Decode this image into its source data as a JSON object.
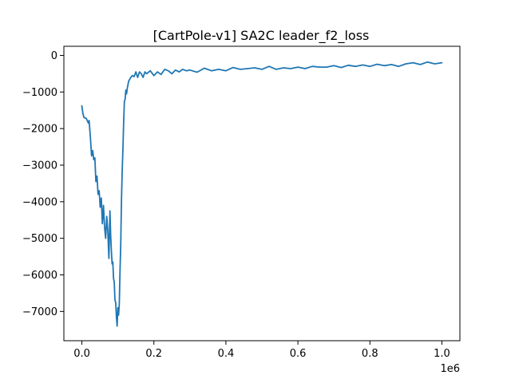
{
  "chart_data": {
    "type": "line",
    "title": "[CartPole-v1] SA2C leader_f2_loss",
    "xlabel": "",
    "ylabel": "",
    "x_offset_label": "1e6",
    "xlim": [
      -50000,
      1050000
    ],
    "ylim": [
      -7800,
      250
    ],
    "x_ticks": [
      0,
      200000,
      400000,
      600000,
      800000,
      1000000
    ],
    "x_tick_labels": [
      "0.0",
      "0.2",
      "0.4",
      "0.6",
      "0.8",
      "1.0"
    ],
    "y_ticks": [
      0,
      -1000,
      -2000,
      -3000,
      -4000,
      -5000,
      -6000,
      -7000
    ],
    "y_tick_labels": [
      "0",
      "−1000",
      "−2000",
      "−3000",
      "−4000",
      "−5000",
      "−6000",
      "−7000"
    ],
    "grid": false,
    "series": [
      {
        "color": "#1f77b4",
        "x": [
          0,
          3000,
          6000,
          12000,
          18000,
          20000,
          24000,
          27000,
          30000,
          33000,
          36000,
          39000,
          42000,
          45000,
          48000,
          51000,
          54000,
          57000,
          60000,
          63000,
          66000,
          69000,
          72000,
          75000,
          78000,
          80000,
          82000,
          84000,
          86000,
          88000,
          90000,
          92000,
          94000,
          96000,
          98000,
          100000,
          102000,
          104000,
          106000,
          108000,
          110000,
          112000,
          114000,
          116000,
          118000,
          120000,
          122000,
          124000,
          126000,
          128000,
          130000,
          133000,
          136000,
          140000,
          145000,
          150000,
          155000,
          160000,
          165000,
          170000,
          175000,
          180000,
          190000,
          200000,
          210000,
          220000,
          230000,
          240000,
          250000,
          260000,
          270000,
          280000,
          290000,
          300000,
          320000,
          340000,
          360000,
          380000,
          400000,
          420000,
          440000,
          460000,
          480000,
          500000,
          520000,
          540000,
          560000,
          580000,
          600000,
          620000,
          640000,
          660000,
          680000,
          700000,
          720000,
          740000,
          760000,
          780000,
          800000,
          820000,
          840000,
          860000,
          880000,
          900000,
          920000,
          940000,
          960000,
          980000,
          1000000
        ],
        "y": [
          -1380,
          -1600,
          -1700,
          -1720,
          -1850,
          -1780,
          -2300,
          -2750,
          -2600,
          -2850,
          -2800,
          -3450,
          -3300,
          -3800,
          -3700,
          -4150,
          -3900,
          -4600,
          -4100,
          -4700,
          -5000,
          -4400,
          -4800,
          -5550,
          -4250,
          -4900,
          -5350,
          -5700,
          -5650,
          -6100,
          -6200,
          -6700,
          -6750,
          -7150,
          -7400,
          -6900,
          -7100,
          -6800,
          -5900,
          -5200,
          -4000,
          -3200,
          -2600,
          -1800,
          -1250,
          -1200,
          -950,
          -1050,
          -900,
          -800,
          -700,
          -650,
          -600,
          -550,
          -580,
          -450,
          -600,
          -450,
          -500,
          -600,
          -450,
          -500,
          -420,
          -550,
          -450,
          -520,
          -380,
          -420,
          -500,
          -400,
          -450,
          -380,
          -420,
          -400,
          -460,
          -350,
          -420,
          -380,
          -420,
          -330,
          -380,
          -360,
          -340,
          -380,
          -300,
          -380,
          -340,
          -360,
          -320,
          -360,
          -300,
          -320,
          -320,
          -280,
          -330,
          -270,
          -300,
          -260,
          -300,
          -240,
          -280,
          -250,
          -300,
          -230,
          -200,
          -250,
          -180,
          -230,
          -200
        ]
      }
    ]
  }
}
